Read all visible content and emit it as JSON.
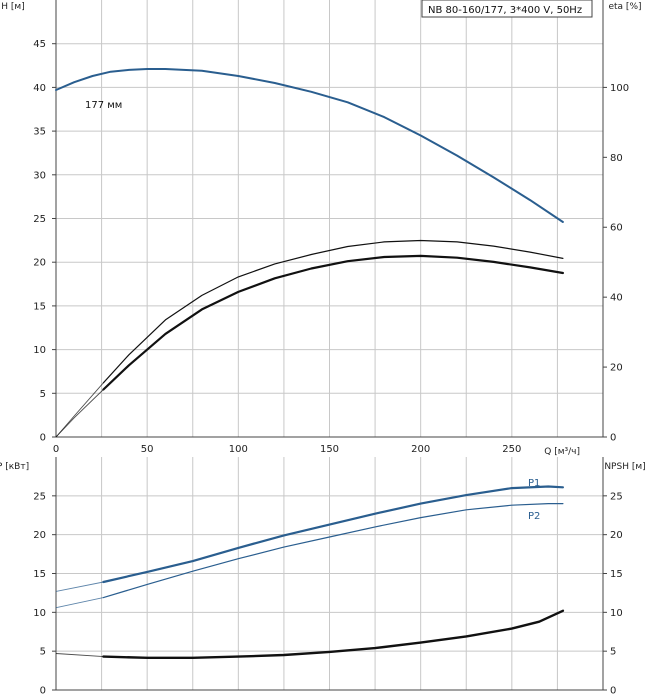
{
  "chart_data": [
    {
      "type": "line",
      "title": "NB 80-160/177, 3*400 V, 50Hz",
      "xlabel": "Q [м³/ч]",
      "ylabel": "H [м]",
      "y2label": "eta [%]",
      "xlim": [
        0,
        300
      ],
      "ylim": [
        0,
        50
      ],
      "y2lim": [
        0,
        125
      ],
      "x_ticks": [
        0,
        50,
        100,
        150,
        200,
        250
      ],
      "y_ticks": [
        0,
        5,
        10,
        15,
        20,
        25,
        30,
        35,
        40,
        45
      ],
      "y2_ticks": [
        0,
        20,
        40,
        60,
        80,
        100
      ],
      "grid": true,
      "series": [
        {
          "name": "177 мм",
          "axis": "H",
          "color": "#2a5e8f",
          "x": [
            0,
            10,
            20,
            30,
            40,
            50,
            60,
            70,
            80,
            100,
            120,
            140,
            160,
            180,
            200,
            220,
            240,
            260,
            278
          ],
          "y": [
            39.7,
            40.6,
            41.3,
            41.8,
            42.0,
            42.1,
            42.1,
            42.0,
            41.9,
            41.3,
            40.5,
            39.5,
            38.3,
            36.6,
            34.5,
            32.2,
            29.7,
            27.1,
            24.6
          ],
          "thin_until_x": 0
        },
        {
          "axis": "eta",
          "color": "#111111",
          "width": 1.2,
          "x": [
            0,
            10,
            26,
            40,
            60,
            80,
            100,
            120,
            140,
            160,
            180,
            200,
            220,
            240,
            260,
            278
          ],
          "y": [
            0,
            6,
            15.5,
            23.5,
            33.5,
            40.5,
            45.8,
            49.5,
            52.2,
            54.5,
            55.8,
            56.2,
            55.8,
            54.6,
            52.9,
            51.1
          ],
          "thin_until_x": 26
        },
        {
          "axis": "eta",
          "color": "#111111",
          "width": 2.2,
          "x": [
            0,
            10,
            26,
            40,
            60,
            80,
            100,
            120,
            140,
            160,
            180,
            200,
            220,
            240,
            260,
            278
          ],
          "y": [
            0,
            5.5,
            13.6,
            20.5,
            29.5,
            36.5,
            41.5,
            45.4,
            48.2,
            50.3,
            51.5,
            51.8,
            51.3,
            50.1,
            48.5,
            46.9
          ],
          "thin_until_x": 26
        }
      ]
    },
    {
      "type": "line",
      "xlabel": "",
      "ylabel": "P [кВт]",
      "y2label": "NPSH [м]",
      "xlim": [
        0,
        300
      ],
      "ylim": [
        0,
        30
      ],
      "y2lim": [
        0,
        30
      ],
      "y_ticks": [
        0,
        5,
        10,
        15,
        20,
        25
      ],
      "y2_ticks": [
        0,
        5,
        10,
        15,
        20,
        25
      ],
      "grid": true,
      "series": [
        {
          "name": "P1",
          "axis": "P",
          "color": "#2a5e8f",
          "width": 2.2,
          "x": [
            0,
            26,
            50,
            75,
            100,
            125,
            150,
            175,
            200,
            225,
            250,
            270,
            278
          ],
          "y": [
            12.7,
            13.9,
            15.2,
            16.6,
            18.3,
            19.9,
            21.3,
            22.7,
            24.0,
            25.1,
            26.0,
            26.2,
            26.1
          ],
          "thin_until_x": 26
        },
        {
          "name": "P2",
          "axis": "P",
          "color": "#2a5e8f",
          "width": 1.2,
          "x": [
            0,
            26,
            50,
            75,
            100,
            125,
            150,
            175,
            200,
            225,
            250,
            270,
            278
          ],
          "y": [
            10.6,
            11.9,
            13.6,
            15.3,
            16.9,
            18.4,
            19.7,
            21.0,
            22.2,
            23.2,
            23.8,
            24.0,
            24.0
          ],
          "thin_until_x": 26
        },
        {
          "name": "NPSH",
          "axis": "NPSH",
          "color": "#111111",
          "width": 2.4,
          "x": [
            0,
            26,
            50,
            75,
            100,
            125,
            150,
            175,
            200,
            225,
            250,
            265,
            278
          ],
          "y": [
            4.7,
            4.3,
            4.15,
            4.15,
            4.3,
            4.5,
            4.9,
            5.4,
            6.1,
            6.9,
            7.9,
            8.8,
            10.2
          ],
          "thin_until_x": 26
        }
      ]
    }
  ]
}
